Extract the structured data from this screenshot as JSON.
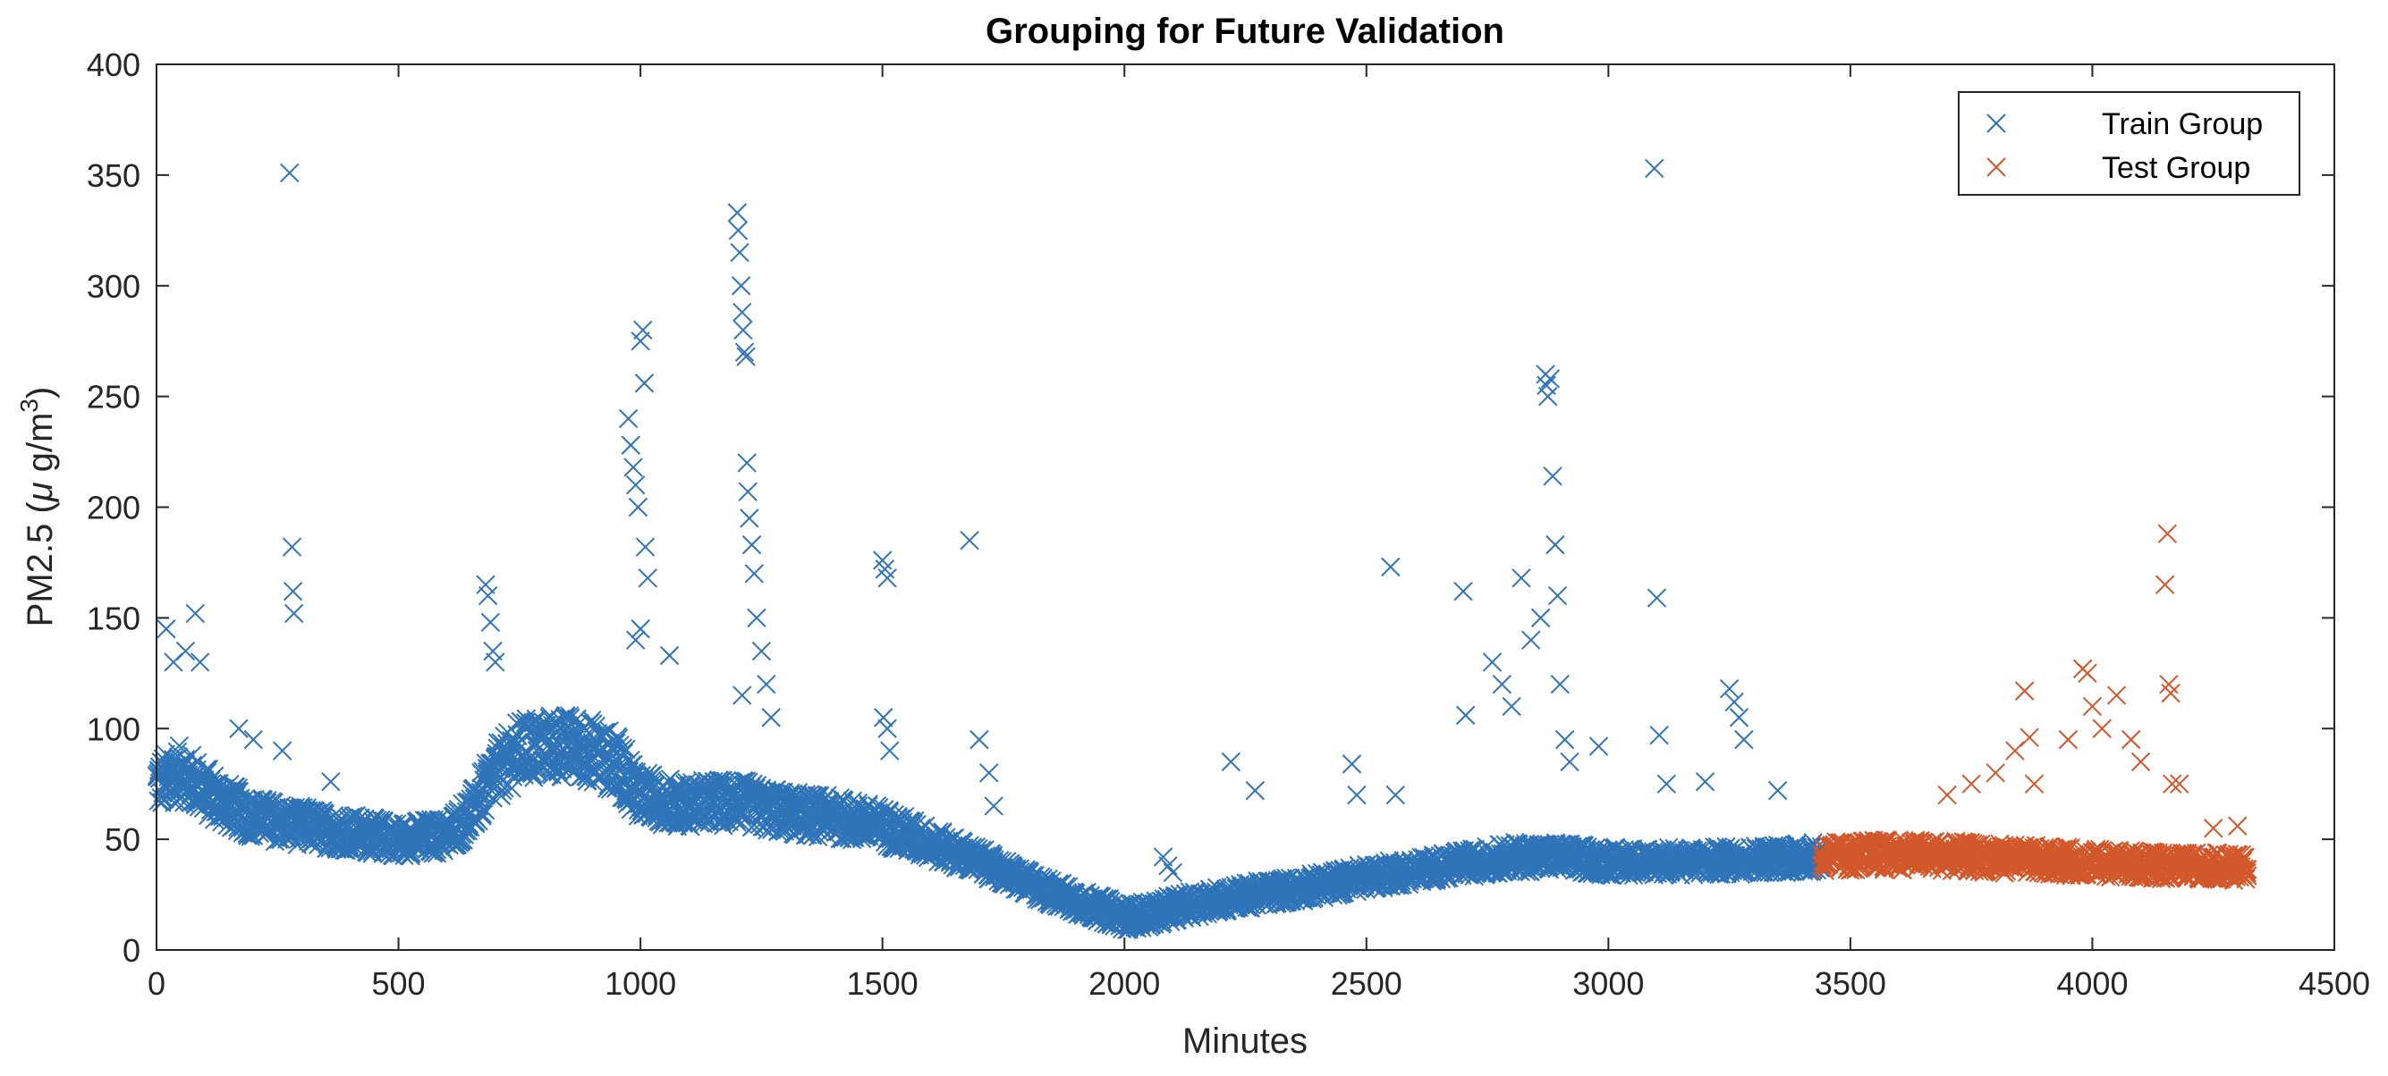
{
  "chart_data": {
    "type": "scatter",
    "title": "Grouping for Future Validation",
    "xlabel": "Minutes",
    "ylabel": {
      "main": "PM2.5 (",
      "mu": "μ",
      "unit": " g/m",
      "exponent": "3",
      "close": ")"
    },
    "xlim": [
      0,
      4500
    ],
    "ylim": [
      0,
      400
    ],
    "xticks": [
      0,
      500,
      1000,
      1500,
      2000,
      2500,
      3000,
      3500,
      4000,
      4500
    ],
    "yticks": [
      0,
      50,
      100,
      150,
      200,
      250,
      300,
      350,
      400
    ],
    "marker": "x",
    "grid": false,
    "legend_position": "top-right",
    "series": [
      {
        "name": "Train Group",
        "color": "#2f73b8",
        "x_range": [
          0,
          3440
        ],
        "baseline": [
          [
            0,
            75
          ],
          [
            50,
            80
          ],
          [
            100,
            72
          ],
          [
            150,
            65
          ],
          [
            200,
            60
          ],
          [
            300,
            56
          ],
          [
            400,
            53
          ],
          [
            500,
            50
          ],
          [
            600,
            52
          ],
          [
            650,
            62
          ],
          [
            700,
            80
          ],
          [
            750,
            90
          ],
          [
            800,
            92
          ],
          [
            850,
            92
          ],
          [
            900,
            90
          ],
          [
            950,
            84
          ],
          [
            1000,
            70
          ],
          [
            1050,
            67
          ],
          [
            1100,
            66
          ],
          [
            1200,
            67
          ],
          [
            1250,
            64
          ],
          [
            1300,
            62
          ],
          [
            1400,
            60
          ],
          [
            1500,
            56
          ],
          [
            1600,
            48
          ],
          [
            1700,
            40
          ],
          [
            1800,
            30
          ],
          [
            1900,
            22
          ],
          [
            2000,
            15
          ],
          [
            2050,
            16
          ],
          [
            2100,
            19
          ],
          [
            2200,
            23
          ],
          [
            2300,
            26
          ],
          [
            2400,
            29
          ],
          [
            2500,
            33
          ],
          [
            2600,
            36
          ],
          [
            2700,
            39
          ],
          [
            2800,
            42
          ],
          [
            2900,
            42
          ],
          [
            3000,
            40
          ],
          [
            3100,
            40
          ],
          [
            3200,
            40
          ],
          [
            3300,
            41
          ],
          [
            3440,
            42
          ]
        ],
        "outliers": [
          [
            20,
            145
          ],
          [
            35,
            130
          ],
          [
            60,
            135
          ],
          [
            80,
            152
          ],
          [
            90,
            130
          ],
          [
            170,
            100
          ],
          [
            200,
            95
          ],
          [
            260,
            90
          ],
          [
            275,
            351
          ],
          [
            280,
            182
          ],
          [
            282,
            162
          ],
          [
            284,
            152
          ],
          [
            360,
            76
          ],
          [
            680,
            165
          ],
          [
            685,
            160
          ],
          [
            690,
            148
          ],
          [
            695,
            135
          ],
          [
            700,
            130
          ],
          [
            975,
            240
          ],
          [
            980,
            228
          ],
          [
            985,
            218
          ],
          [
            990,
            210
          ],
          [
            995,
            200
          ],
          [
            1000,
            275
          ],
          [
            1005,
            280
          ],
          [
            1008,
            256
          ],
          [
            1010,
            182
          ],
          [
            1015,
            168
          ],
          [
            1000,
            145
          ],
          [
            990,
            140
          ],
          [
            1060,
            133
          ],
          [
            1200,
            333
          ],
          [
            1202,
            325
          ],
          [
            1205,
            315
          ],
          [
            1208,
            300
          ],
          [
            1210,
            288
          ],
          [
            1212,
            280
          ],
          [
            1215,
            270
          ],
          [
            1218,
            268
          ],
          [
            1220,
            220
          ],
          [
            1222,
            207
          ],
          [
            1225,
            195
          ],
          [
            1230,
            183
          ],
          [
            1235,
            170
          ],
          [
            1240,
            150
          ],
          [
            1250,
            135
          ],
          [
            1260,
            120
          ],
          [
            1270,
            105
          ],
          [
            1210,
            115
          ],
          [
            1500,
            176
          ],
          [
            1505,
            172
          ],
          [
            1510,
            168
          ],
          [
            1502,
            105
          ],
          [
            1510,
            100
          ],
          [
            1515,
            90
          ],
          [
            1680,
            185
          ],
          [
            1700,
            95
          ],
          [
            1720,
            80
          ],
          [
            1730,
            65
          ],
          [
            2080,
            42
          ],
          [
            2090,
            38
          ],
          [
            2100,
            35
          ],
          [
            2220,
            85
          ],
          [
            2270,
            72
          ],
          [
            2470,
            84
          ],
          [
            2480,
            70
          ],
          [
            2550,
            173
          ],
          [
            2560,
            70
          ],
          [
            2700,
            162
          ],
          [
            2705,
            106
          ],
          [
            2760,
            130
          ],
          [
            2780,
            120
          ],
          [
            2800,
            110
          ],
          [
            2820,
            168
          ],
          [
            2840,
            140
          ],
          [
            2860,
            150
          ],
          [
            2870,
            260
          ],
          [
            2872,
            255
          ],
          [
            2875,
            250
          ],
          [
            2880,
            258
          ],
          [
            2885,
            214
          ],
          [
            2890,
            183
          ],
          [
            2895,
            160
          ],
          [
            2900,
            120
          ],
          [
            2910,
            95
          ],
          [
            2920,
            85
          ],
          [
            2980,
            92
          ],
          [
            3095,
            353
          ],
          [
            3100,
            159
          ],
          [
            3105,
            97
          ],
          [
            3120,
            75
          ],
          [
            3200,
            76
          ],
          [
            3250,
            118
          ],
          [
            3260,
            112
          ],
          [
            3270,
            105
          ],
          [
            3280,
            95
          ],
          [
            3350,
            72
          ]
        ]
      },
      {
        "name": "Test Group",
        "color": "#d2572a",
        "x_range": [
          3440,
          4320
        ],
        "baseline": [
          [
            3440,
            42
          ],
          [
            3550,
            43
          ],
          [
            3650,
            43
          ],
          [
            3750,
            42
          ],
          [
            3850,
            41
          ],
          [
            3950,
            40
          ],
          [
            4050,
            39
          ],
          [
            4150,
            38
          ],
          [
            4250,
            38
          ],
          [
            4320,
            37
          ]
        ],
        "outliers": [
          [
            3700,
            70
          ],
          [
            3750,
            75
          ],
          [
            3800,
            80
          ],
          [
            3840,
            90
          ],
          [
            3860,
            117
          ],
          [
            3870,
            96
          ],
          [
            3880,
            75
          ],
          [
            3950,
            95
          ],
          [
            3980,
            127
          ],
          [
            3990,
            125
          ],
          [
            4000,
            110
          ],
          [
            4020,
            100
          ],
          [
            4050,
            115
          ],
          [
            4080,
            95
          ],
          [
            4100,
            85
          ],
          [
            4150,
            165
          ],
          [
            4155,
            188
          ],
          [
            4158,
            120
          ],
          [
            4162,
            116
          ],
          [
            4165,
            75
          ],
          [
            4180,
            75
          ],
          [
            4250,
            55
          ],
          [
            4300,
            56
          ]
        ]
      }
    ]
  }
}
